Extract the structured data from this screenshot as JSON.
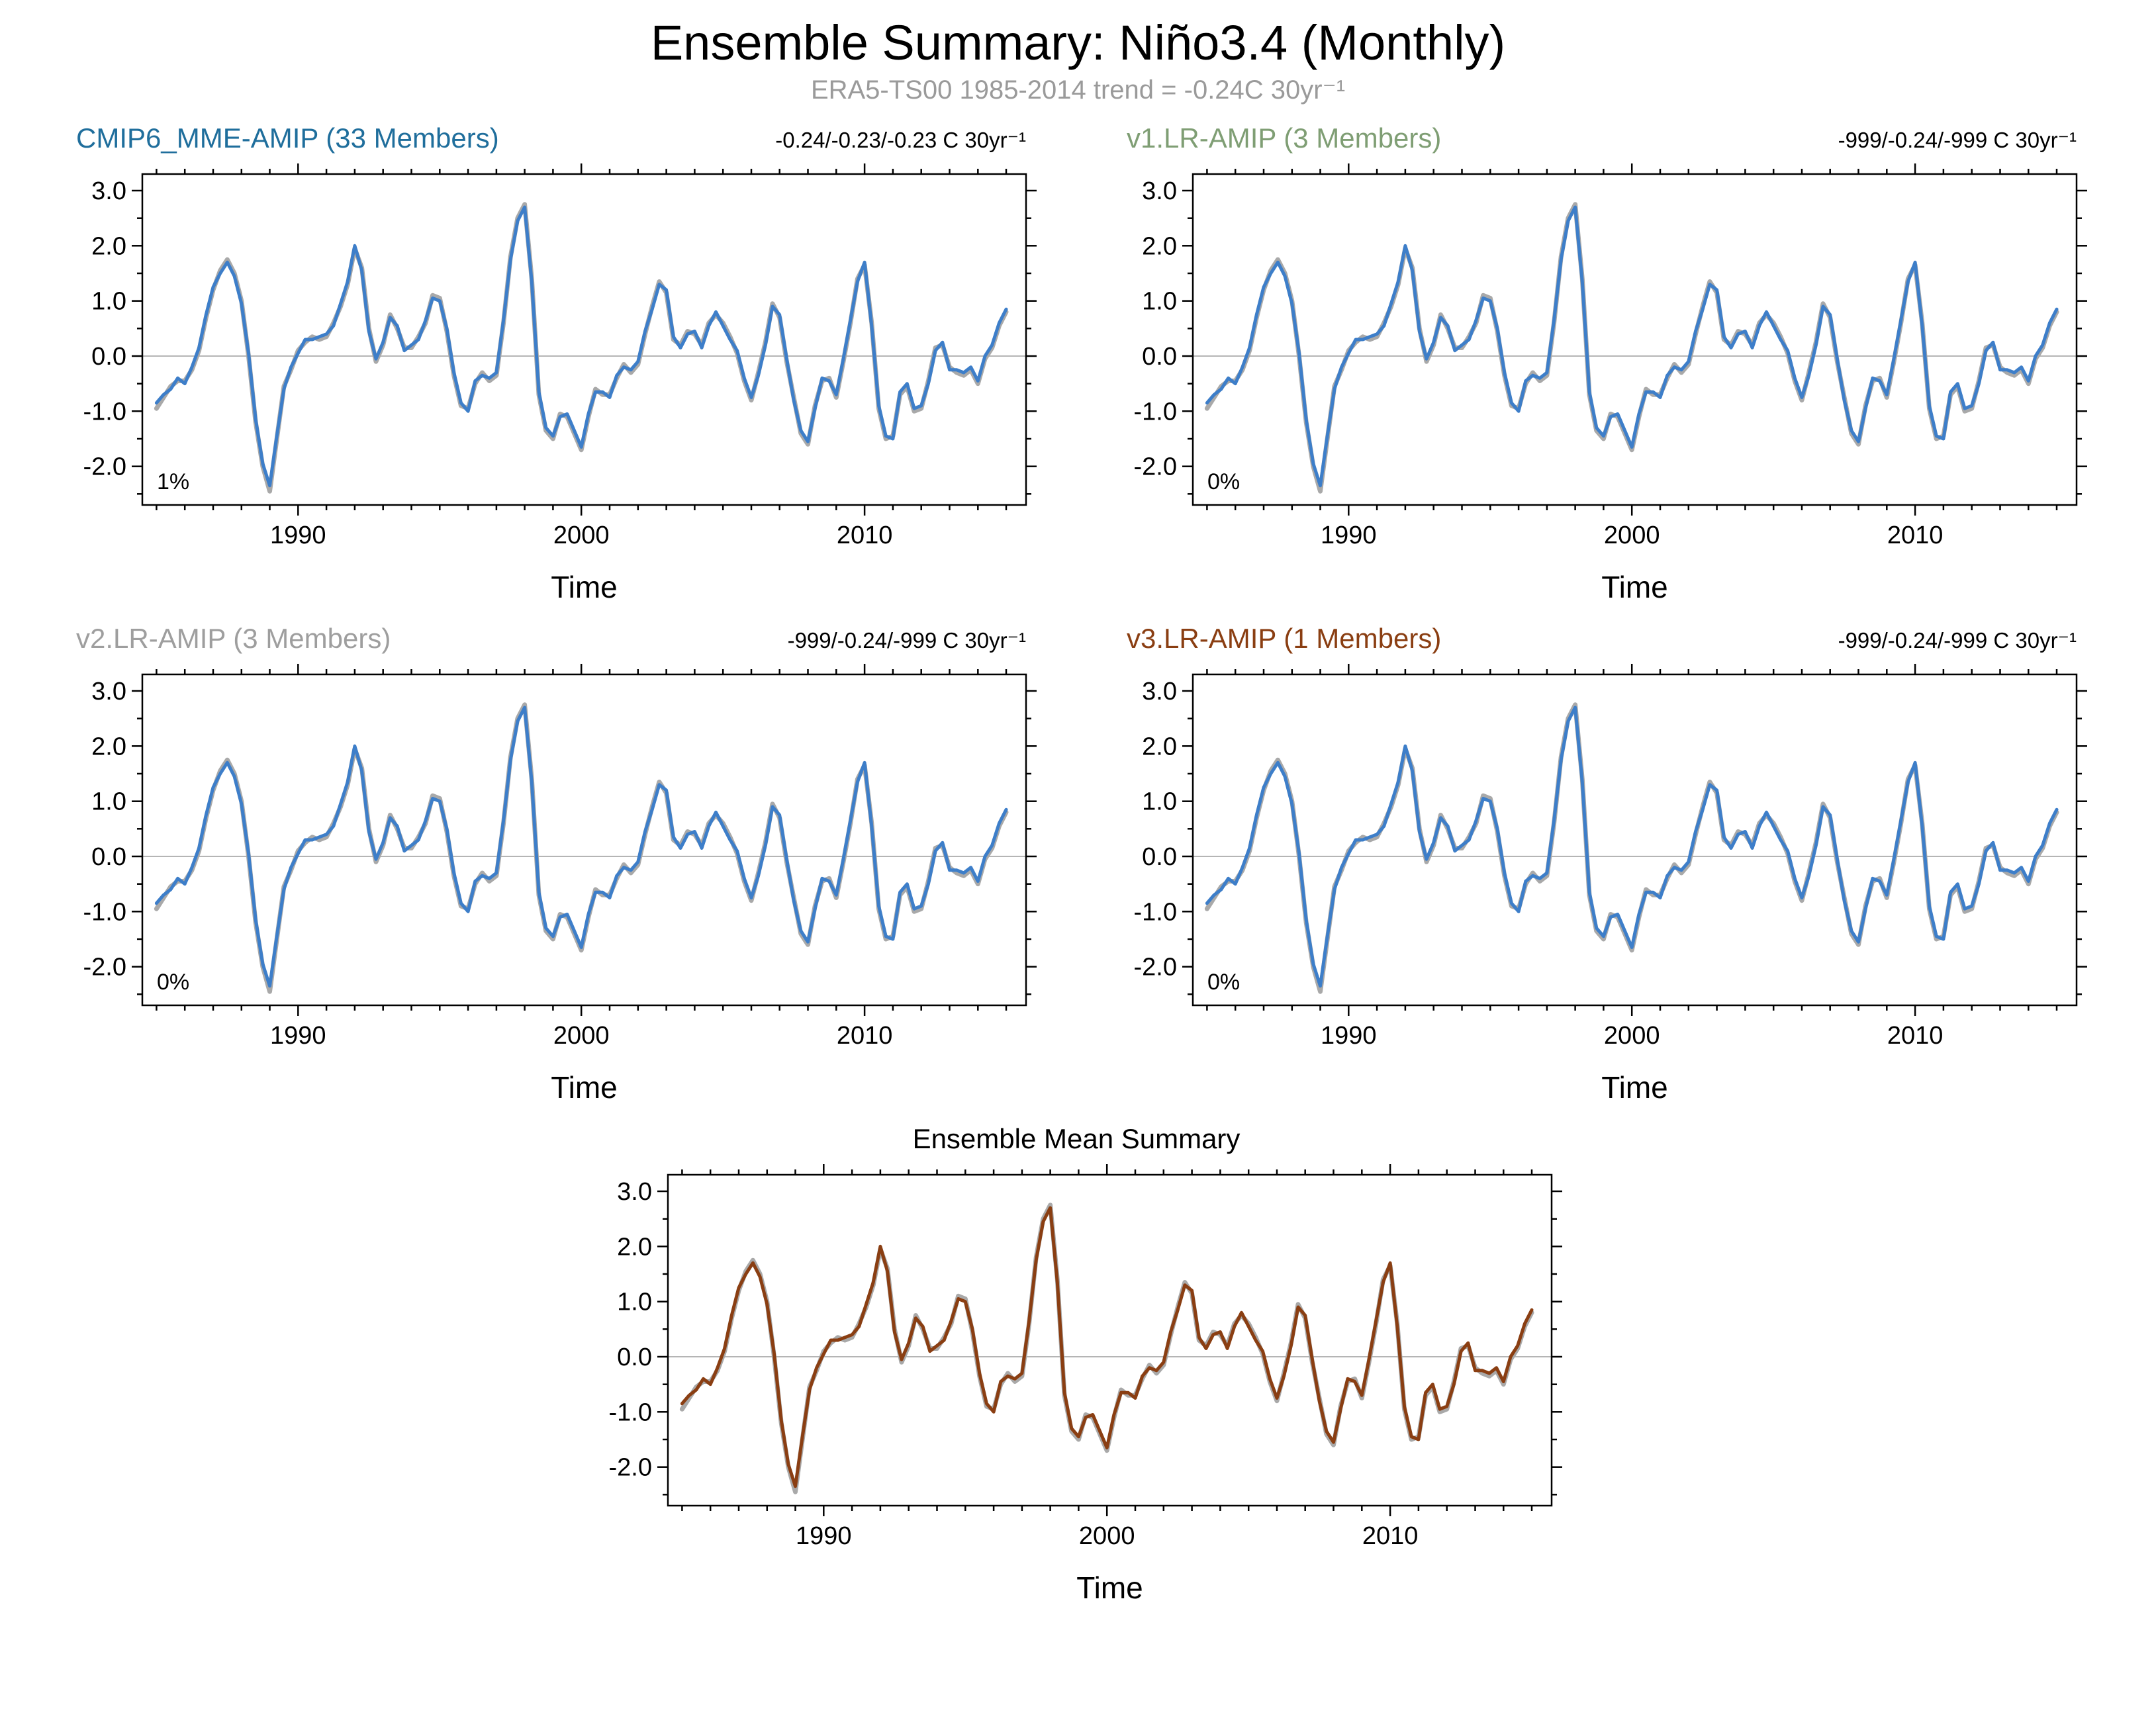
{
  "page": {
    "title": "Ensemble Summary: Niño3.4 (Monthly)",
    "subtitle": "ERA5-TS00 1985-2014 trend = -0.24C 30yr⁻¹"
  },
  "chart_data": {
    "type": "line",
    "title": "Ensemble Summary: Niño3.4 (Monthly)",
    "subtitle": "ERA5-TS00 1985-2014 trend = -0.24C 30yr⁻¹",
    "xlabel": "Time",
    "ylabel": "",
    "x_start": 1985.0,
    "x_step": 0.25,
    "xlim": [
      1984.5,
      2015.7
    ],
    "ylim": [
      -2.7,
      3.3
    ],
    "xticks": [
      1990,
      2000,
      2010
    ],
    "x_minor_step": 1,
    "yticks": [
      -2.0,
      -1.0,
      0.0,
      1.0,
      2.0,
      3.0
    ],
    "y_minor_step": 0.5,
    "grid": false,
    "legend": "none",
    "colors": {
      "reference_gray": "#a9a9a9",
      "ensemble_blue": "#3d7ec9",
      "ensemble_brown": "#8a3e12"
    },
    "series_values": {
      "reference": [
        -0.95,
        -0.75,
        -0.55,
        -0.45,
        -0.45,
        -0.25,
        0.1,
        0.7,
        1.2,
        1.55,
        1.75,
        1.5,
        1.0,
        0.0,
        -1.2,
        -2.0,
        -2.45,
        -1.5,
        -0.55,
        -0.25,
        0.1,
        0.25,
        0.35,
        0.3,
        0.35,
        0.6,
        0.9,
        1.3,
        1.95,
        1.6,
        0.5,
        -0.1,
        0.2,
        0.75,
        0.5,
        0.15,
        0.15,
        0.35,
        0.6,
        1.1,
        1.05,
        0.45,
        -0.35,
        -0.9,
        -0.95,
        -0.5,
        -0.3,
        -0.45,
        -0.35,
        0.6,
        1.8,
        2.5,
        2.75,
        1.4,
        -0.7,
        -1.35,
        -1.5,
        -1.05,
        -1.1,
        -1.4,
        -1.7,
        -1.1,
        -0.6,
        -0.7,
        -0.7,
        -0.4,
        -0.15,
        -0.3,
        -0.15,
        0.4,
        0.9,
        1.35,
        1.15,
        0.3,
        0.2,
        0.45,
        0.4,
        0.2,
        0.6,
        0.75,
        0.6,
        0.35,
        0.05,
        -0.45,
        -0.8,
        -0.3,
        0.25,
        0.95,
        0.7,
        -0.1,
        -0.75,
        -1.4,
        -1.6,
        -0.9,
        -0.45,
        -0.4,
        -0.75,
        -0.1,
        0.6,
        1.4,
        1.65,
        0.6,
        -0.95,
        -1.5,
        -1.45,
        -0.7,
        -0.55,
        -1.0,
        -0.95,
        -0.45,
        0.15,
        0.2,
        -0.2,
        -0.3,
        -0.35,
        -0.25,
        -0.5,
        -0.05,
        0.15,
        0.55,
        0.8
      ],
      "ensemble": [
        -0.85,
        -0.7,
        -0.6,
        -0.4,
        -0.5,
        -0.2,
        0.15,
        0.75,
        1.25,
        1.5,
        1.7,
        1.45,
        0.95,
        0.05,
        -1.15,
        -1.95,
        -2.35,
        -1.45,
        -0.6,
        -0.2,
        0.05,
        0.3,
        0.3,
        0.35,
        0.4,
        0.55,
        0.95,
        1.35,
        2.0,
        1.55,
        0.45,
        -0.05,
        0.25,
        0.7,
        0.55,
        0.1,
        0.2,
        0.3,
        0.65,
        1.05,
        1.0,
        0.5,
        -0.3,
        -0.85,
        -1.0,
        -0.45,
        -0.35,
        -0.4,
        -0.3,
        0.65,
        1.75,
        2.45,
        2.7,
        1.35,
        -0.65,
        -1.3,
        -1.45,
        -1.1,
        -1.05,
        -1.35,
        -1.65,
        -1.05,
        -0.65,
        -0.65,
        -0.75,
        -0.35,
        -0.2,
        -0.25,
        -0.1,
        0.45,
        0.85,
        1.3,
        1.2,
        0.35,
        0.15,
        0.4,
        0.45,
        0.15,
        0.55,
        0.8,
        0.55,
        0.3,
        0.1,
        -0.4,
        -0.75,
        -0.35,
        0.2,
        0.9,
        0.75,
        -0.05,
        -0.8,
        -1.35,
        -1.55,
        -0.95,
        -0.4,
        -0.45,
        -0.7,
        -0.05,
        0.65,
        1.35,
        1.7,
        0.55,
        -0.9,
        -1.45,
        -1.5,
        -0.65,
        -0.5,
        -0.95,
        -0.9,
        -0.5,
        0.1,
        0.25,
        -0.25,
        -0.25,
        -0.3,
        -0.2,
        -0.45,
        0.0,
        0.2,
        0.6,
        0.85
      ]
    },
    "panels": [
      {
        "title": "CMIP6_MME-AMIP (33 Members)",
        "title_color": "#1f6e9c",
        "trend_label": "-0.24/-0.23/-0.23 C 30yr⁻¹",
        "percent_label": "1%",
        "series": [
          {
            "ref": "reference",
            "name": "ERA5-TS00",
            "color": "#a9a9a9",
            "width": 7
          },
          {
            "ref": "ensemble",
            "name": "CMIP6_MME-AMIP",
            "color": "#3d7ec9",
            "width": 5
          }
        ]
      },
      {
        "title": "v1.LR-AMIP (3 Members)",
        "title_color": "#7f9e74",
        "trend_label": "-999/-0.24/-999 C 30yr⁻¹",
        "percent_label": "0%",
        "series": [
          {
            "ref": "reference",
            "name": "ERA5-TS00",
            "color": "#a9a9a9",
            "width": 7
          },
          {
            "ref": "ensemble",
            "name": "v1.LR-AMIP",
            "color": "#3d7ec9",
            "width": 5
          }
        ]
      },
      {
        "title": "v2.LR-AMIP (3 Members)",
        "title_color": "#9e9e9e",
        "trend_label": "-999/-0.24/-999 C 30yr⁻¹",
        "percent_label": "0%",
        "series": [
          {
            "ref": "reference",
            "name": "ERA5-TS00",
            "color": "#a9a9a9",
            "width": 7
          },
          {
            "ref": "ensemble",
            "name": "v2.LR-AMIP",
            "color": "#3d7ec9",
            "width": 5
          }
        ]
      },
      {
        "title": "v3.LR-AMIP (1 Members)",
        "title_color": "#8a3e12",
        "trend_label": "-999/-0.24/-999 C 30yr⁻¹",
        "percent_label": "0%",
        "series": [
          {
            "ref": "reference",
            "name": "ERA5-TS00",
            "color": "#a9a9a9",
            "width": 7
          },
          {
            "ref": "ensemble",
            "name": "v3.LR-AMIP",
            "color": "#3d7ec9",
            "width": 5
          }
        ]
      },
      {
        "title": "Ensemble Mean Summary",
        "title_color": "#000000",
        "trend_label": "",
        "percent_label": "",
        "series": [
          {
            "ref": "reference",
            "name": "ERA5-TS00",
            "color": "#a9a9a9",
            "width": 7
          },
          {
            "ref": "ensemble",
            "name": "Ensemble Mean",
            "color": "#8a3e12",
            "width": 5
          }
        ]
      }
    ]
  }
}
